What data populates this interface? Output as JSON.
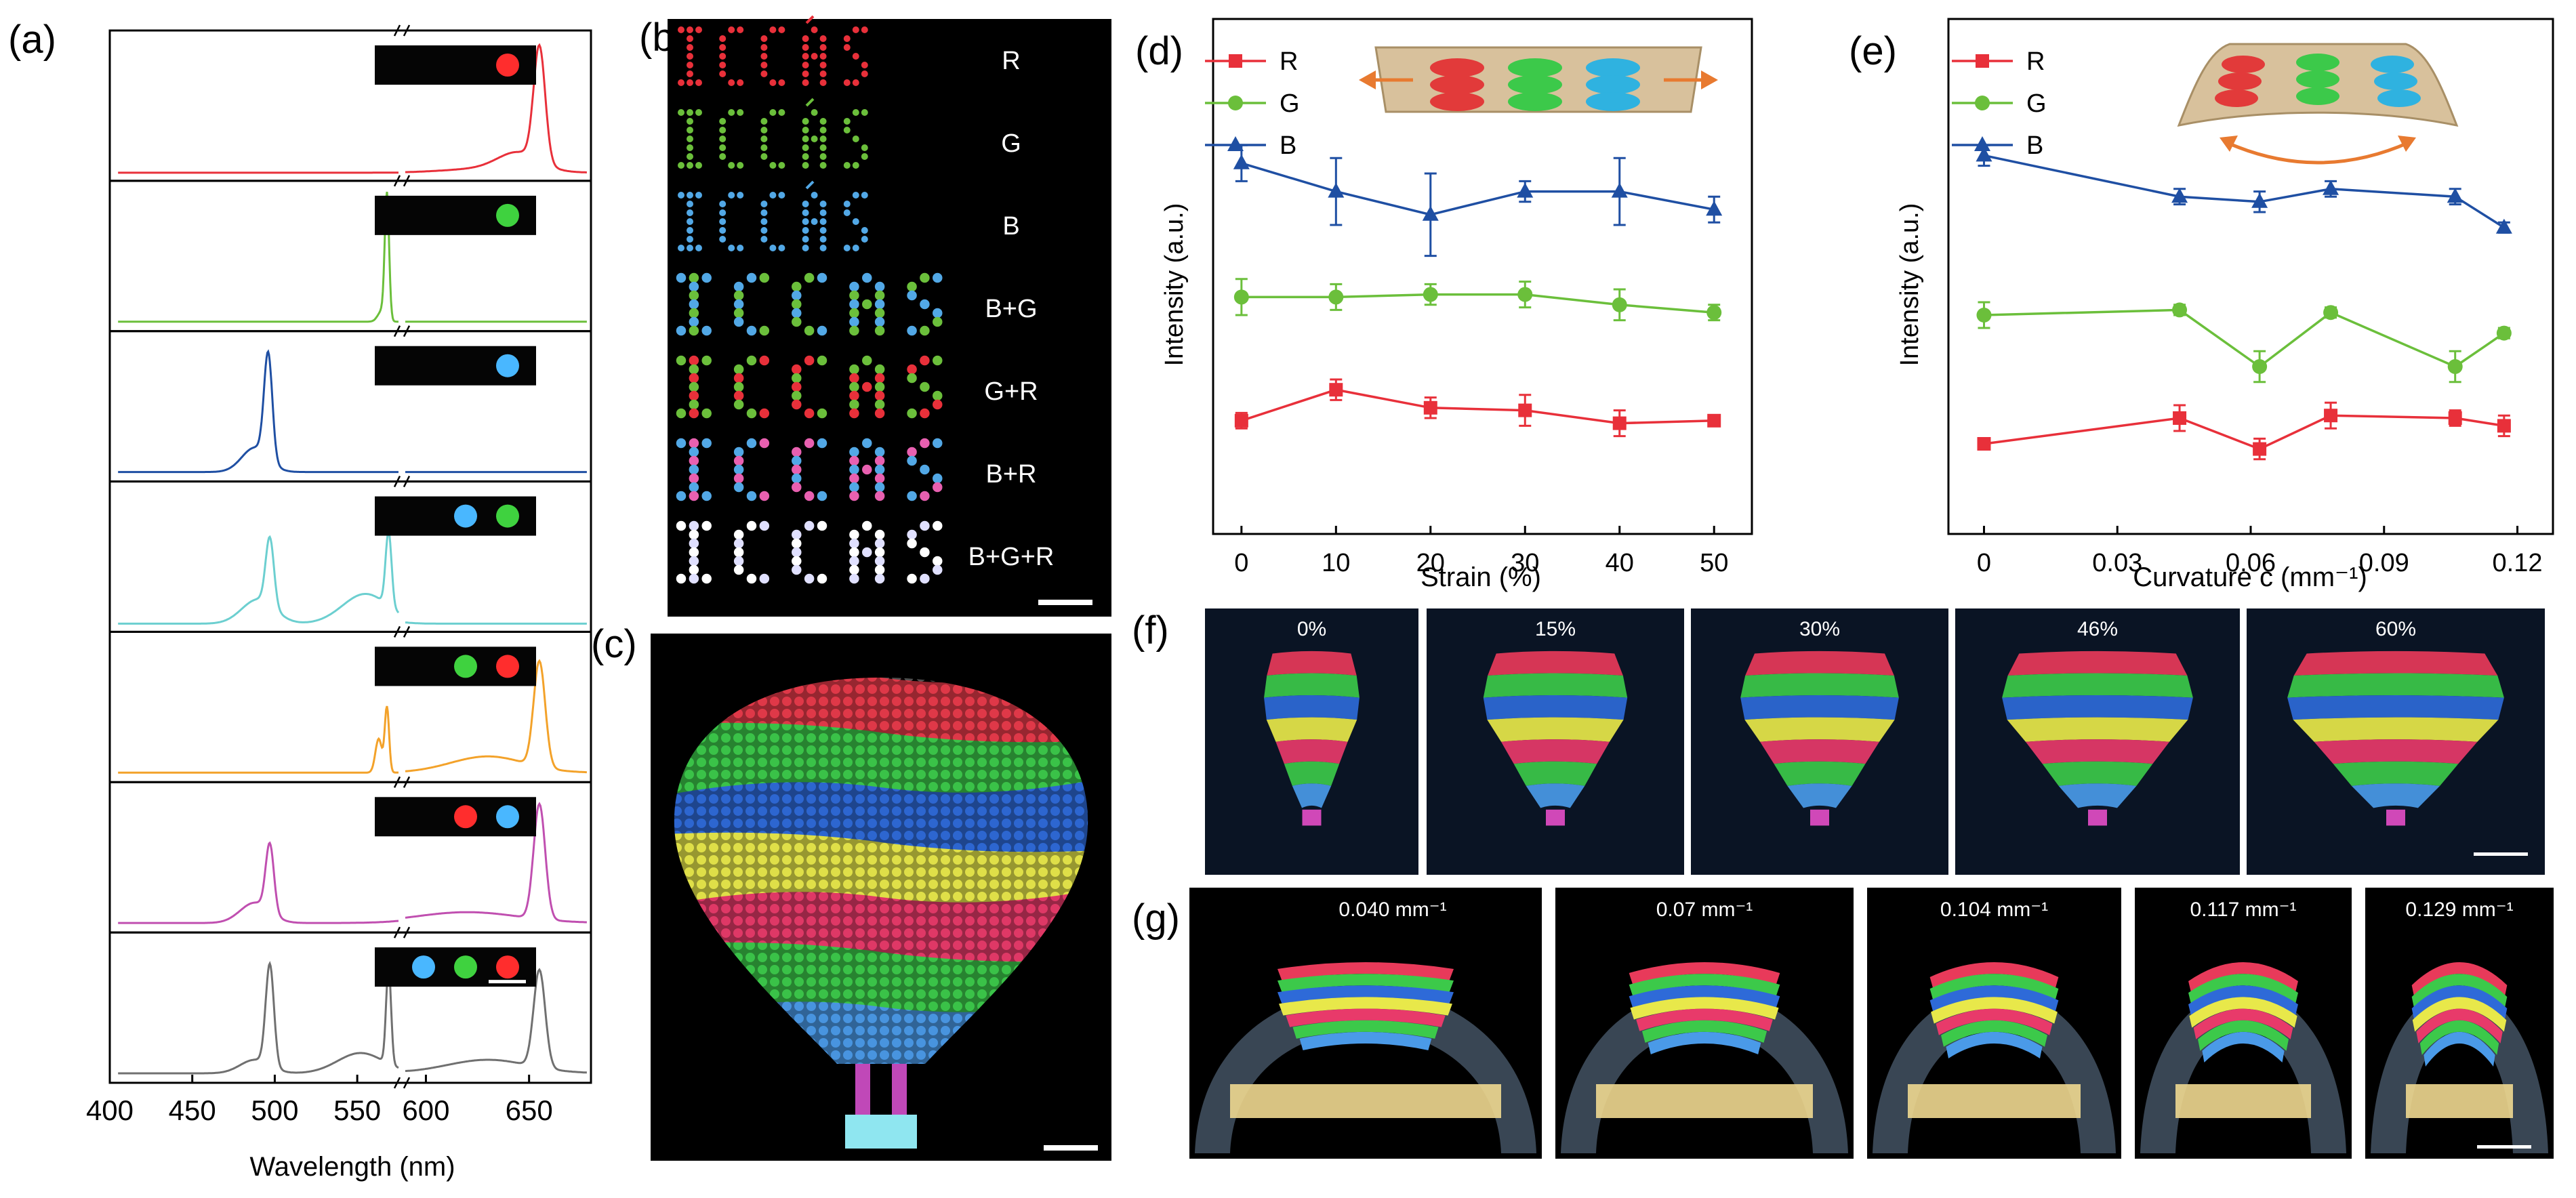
{
  "panels": {
    "a": {
      "label": "(a)",
      "xlabel": "Wavelength (nm)",
      "ticks": [
        "400",
        "450",
        "500",
        "550",
        "600",
        "650"
      ],
      "colors": [
        "#e8303a",
        "#6bbf3b",
        "#1f4fa3",
        "#6ccfd0",
        "#f3a22a",
        "#c04fb0",
        "#707070"
      ],
      "insets": [
        [
          "red"
        ],
        [
          "green"
        ],
        [
          "blue"
        ],
        [
          "blue",
          "green"
        ],
        [
          "green",
          "red"
        ],
        [
          "red",
          "blue"
        ],
        [
          "blue",
          "green",
          "red"
        ]
      ]
    },
    "b": {
      "label": "(b)",
      "rows": [
        {
          "text": "ICCAS",
          "caption": "R",
          "colors": [
            "#e8303a"
          ]
        },
        {
          "text": "ICCAS",
          "caption": "G",
          "colors": [
            "#6bbf3b"
          ]
        },
        {
          "text": "ICCAS",
          "caption": "B",
          "colors": [
            "#52a8e6"
          ]
        },
        {
          "text": "ICCAS",
          "caption": "B+G",
          "colors": [
            "#52a8e6",
            "#6bbf3b"
          ]
        },
        {
          "text": "ICCAS",
          "caption": "G+R",
          "colors": [
            "#6bbf3b",
            "#e8303a"
          ]
        },
        {
          "text": "ICCAS",
          "caption": "B+R",
          "colors": [
            "#52a8e6",
            "#e860b0"
          ]
        },
        {
          "text": "ICCAS",
          "caption": "B+G+R",
          "colors": [
            "#ffffff",
            "#e0e0ff"
          ]
        }
      ]
    },
    "c": {
      "label": "(c)",
      "bands": [
        "#e83a4a",
        "#3cc94a",
        "#2e6ad8",
        "#e8e84a",
        "#e83a6a",
        "#3cc94a",
        "#4a9ae8"
      ]
    },
    "d": {
      "label": "(d)",
      "ylabel": "Intensity (a.u.)",
      "xlabel": "Strain (%)",
      "legend": [
        "R",
        "G",
        "B"
      ]
    },
    "e": {
      "label": "(e)",
      "ylabel": "Intensity (a.u.)",
      "xlabel": "Curvature c (mm⁻¹)",
      "legend": [
        "R",
        "G",
        "B"
      ]
    },
    "f": {
      "label": "(f)",
      "captions": [
        "0%",
        "15%",
        "30%",
        "46%",
        "60%"
      ]
    },
    "g": {
      "label": "(g)",
      "captions": [
        "0.040 mm⁻¹",
        "0.07 mm⁻¹",
        "0.104 mm⁻¹",
        "0.117 mm⁻¹",
        "0.129 mm⁻¹"
      ]
    }
  },
  "chart_data": [
    {
      "panel": "d",
      "type": "line",
      "title": "",
      "xlabel": "Strain (%)",
      "ylabel": "Intensity (a.u.)",
      "x": [
        0,
        10,
        20,
        30,
        40,
        50
      ],
      "xticks": [
        "0",
        "10",
        "20",
        "30",
        "40",
        "50"
      ],
      "xlim": [
        -3,
        54
      ],
      "ylim": [
        0,
        1
      ],
      "series": [
        {
          "name": "R",
          "color": "#e8303a",
          "marker": "square",
          "values": [
            0.22,
            0.28,
            0.245,
            0.24,
            0.215,
            0.22
          ],
          "errors": [
            0.015,
            0.02,
            0.02,
            0.03,
            0.025,
            0.01
          ]
        },
        {
          "name": "G",
          "color": "#6bbf3b",
          "marker": "circle",
          "values": [
            0.46,
            0.46,
            0.465,
            0.465,
            0.445,
            0.43
          ],
          "errors": [
            0.035,
            0.025,
            0.02,
            0.025,
            0.03,
            0.015
          ]
        },
        {
          "name": "B",
          "color": "#1f4fa3",
          "marker": "triangle",
          "values": [
            0.72,
            0.665,
            0.62,
            0.665,
            0.665,
            0.63
          ],
          "errors": [
            0.035,
            0.065,
            0.08,
            0.02,
            0.065,
            0.025
          ]
        }
      ]
    },
    {
      "panel": "e",
      "type": "line",
      "title": "",
      "xlabel": "Curvature c (mm⁻¹)",
      "ylabel": "Intensity (a.u.)",
      "x": [
        0,
        0.044,
        0.062,
        0.078,
        0.106,
        0.117
      ],
      "xticks": [
        "0",
        "0.03",
        "0.06",
        "0.09",
        "0.12"
      ],
      "xtick_values": [
        0,
        0.03,
        0.06,
        0.09,
        0.12
      ],
      "xlim": [
        -0.008,
        0.128
      ],
      "ylim": [
        0,
        1
      ],
      "series": [
        {
          "name": "R",
          "color": "#e8303a",
          "marker": "square",
          "values": [
            0.175,
            0.225,
            0.165,
            0.23,
            0.225,
            0.21
          ],
          "errors": [
            0.01,
            0.025,
            0.02,
            0.025,
            0.015,
            0.02
          ]
        },
        {
          "name": "G",
          "color": "#6bbf3b",
          "marker": "circle",
          "values": [
            0.425,
            0.435,
            0.325,
            0.43,
            0.325,
            0.39
          ],
          "errors": [
            0.025,
            0.01,
            0.03,
            0.01,
            0.03,
            0.01
          ]
        },
        {
          "name": "B",
          "color": "#1f4fa3",
          "marker": "triangle",
          "values": [
            0.735,
            0.655,
            0.645,
            0.67,
            0.655,
            0.595
          ],
          "errors": [
            0.02,
            0.015,
            0.02,
            0.015,
            0.015,
            0.01
          ]
        }
      ]
    }
  ]
}
